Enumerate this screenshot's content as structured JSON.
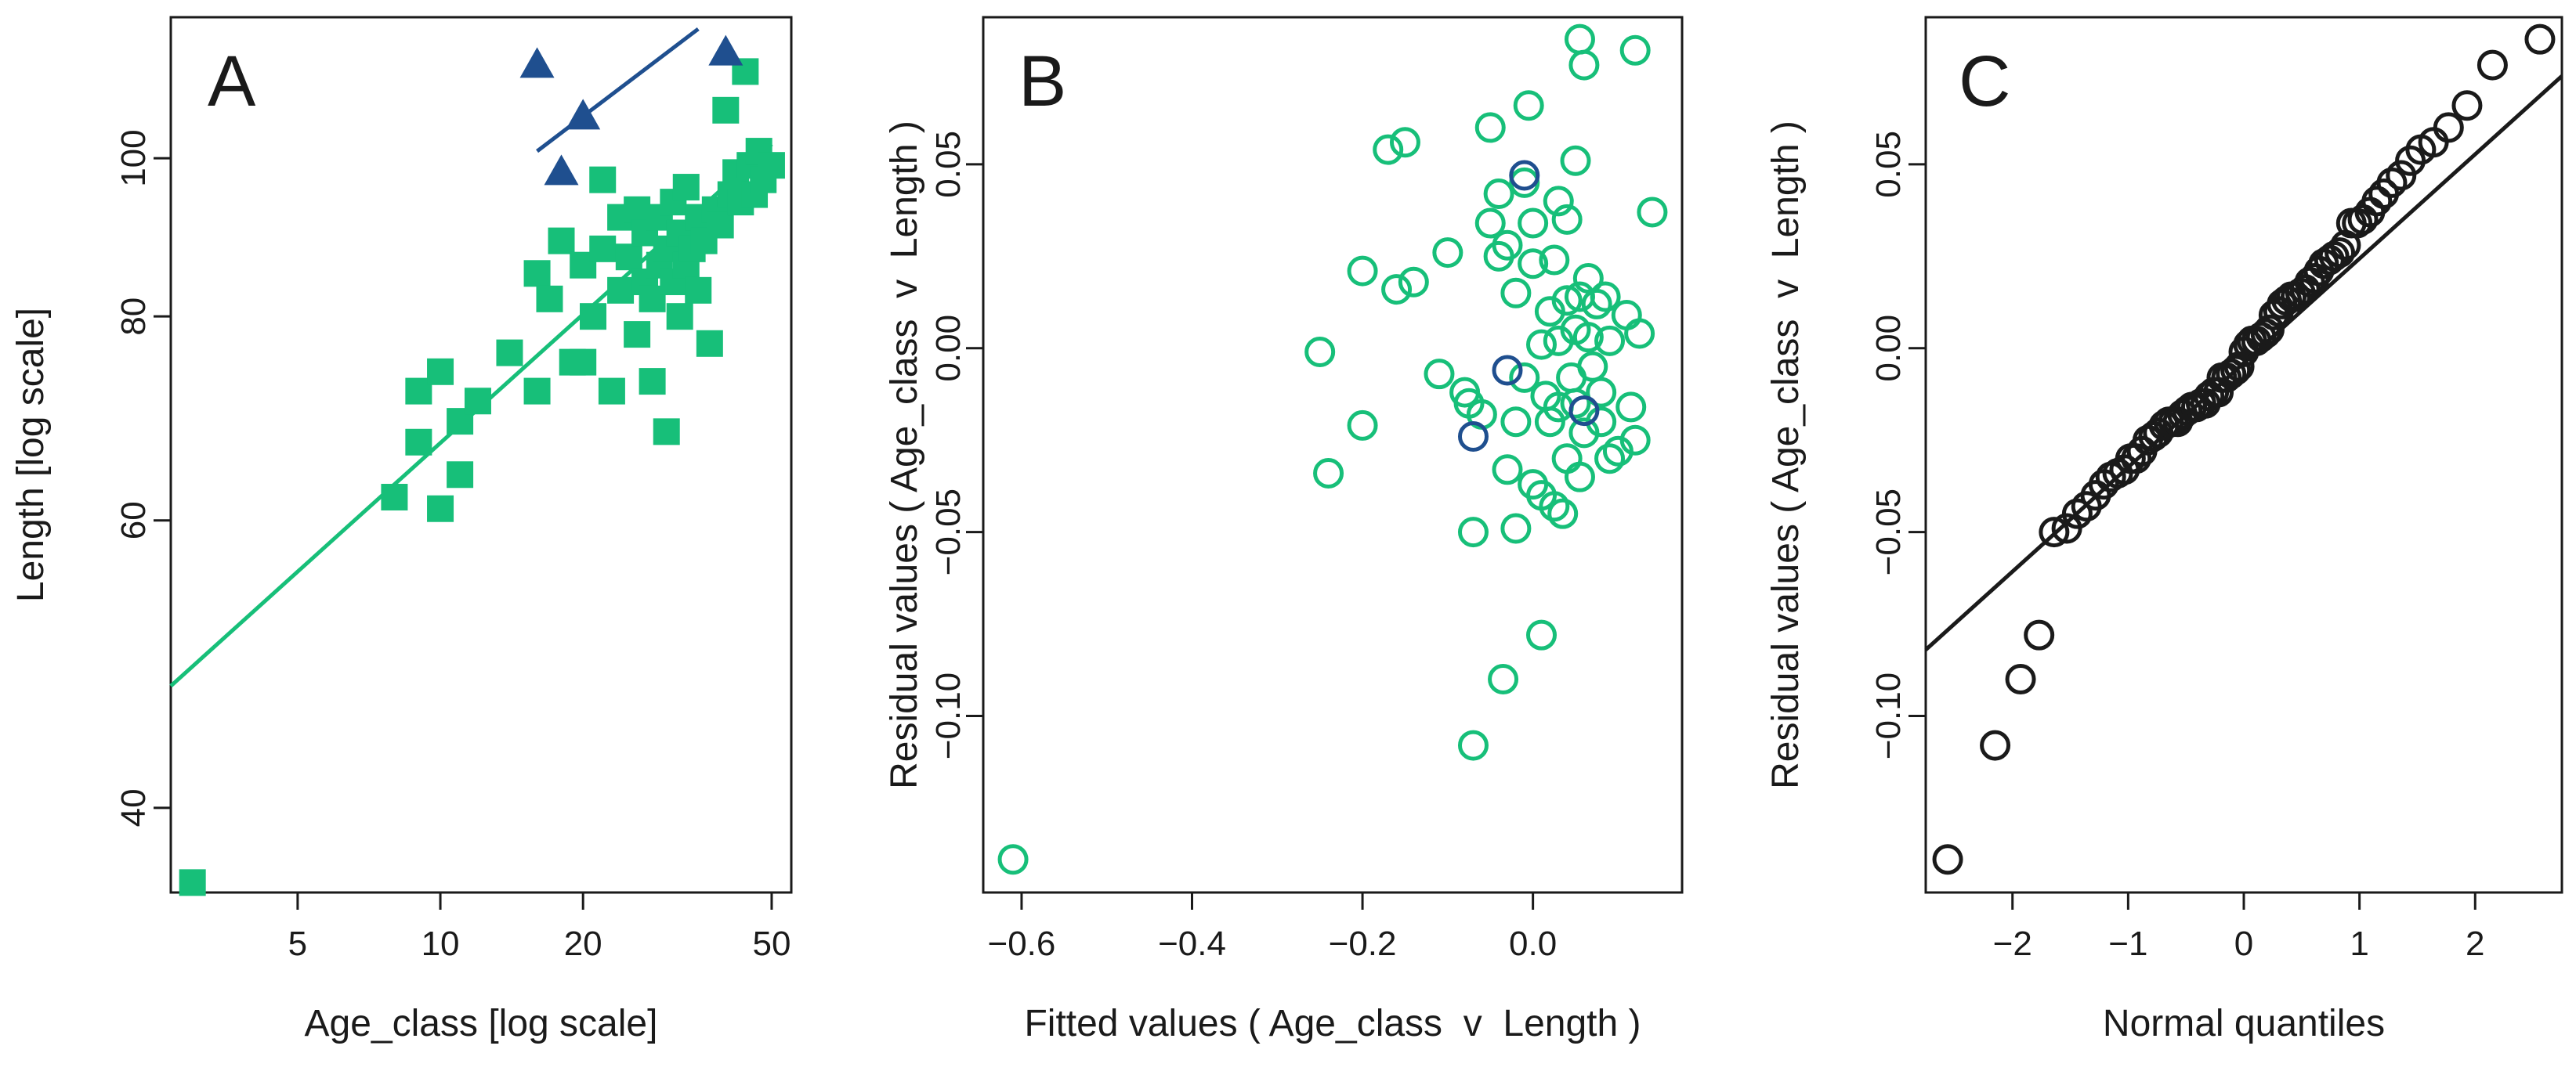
{
  "colors": {
    "green": "#17bf79",
    "blue": "#1f4f8f",
    "black": "#1a1a1a"
  },
  "chart_data": [
    {
      "type": "scatter",
      "panel_label": "A",
      "xlabel": "Age_class [log scale]",
      "ylabel": "Length [log scale]",
      "xscale": "log",
      "yscale": "log",
      "xlim": [
        2.7,
        55
      ],
      "ylim": [
        35.5,
        122
      ],
      "xticks": [
        5,
        10,
        20,
        50
      ],
      "yticks": [
        40,
        60,
        80,
        100
      ],
      "grid": false,
      "series": [
        {
          "marker": "square",
          "color": "#17bf79",
          "points": [
            [
              3,
              36
            ],
            [
              8,
              62
            ],
            [
              9,
              67
            ],
            [
              9,
              72
            ],
            [
              10,
              61
            ],
            [
              10,
              74
            ],
            [
              11,
              69
            ],
            [
              11,
              64
            ],
            [
              12,
              71
            ],
            [
              14,
              76
            ],
            [
              16,
              72
            ],
            [
              16,
              85
            ],
            [
              17,
              82
            ],
            [
              18,
              89
            ],
            [
              19,
              75
            ],
            [
              20,
              75
            ],
            [
              20,
              86
            ],
            [
              21,
              80
            ],
            [
              22,
              97
            ],
            [
              22,
              88
            ],
            [
              23,
              72
            ],
            [
              24,
              83
            ],
            [
              24,
              92
            ],
            [
              25,
              87
            ],
            [
              26,
              78
            ],
            [
              26,
              93
            ],
            [
              27,
              84
            ],
            [
              27,
              90
            ],
            [
              28,
              73
            ],
            [
              28,
              82
            ],
            [
              29,
              86
            ],
            [
              29,
              92
            ],
            [
              30,
              68
            ],
            [
              30,
              88
            ],
            [
              31,
              84
            ],
            [
              31,
              94
            ],
            [
              32,
              80
            ],
            [
              32,
              90
            ],
            [
              33,
              86
            ],
            [
              33,
              96
            ],
            [
              34,
              88
            ],
            [
              35,
              92
            ],
            [
              35,
              83
            ],
            [
              36,
              89
            ],
            [
              37,
              77
            ],
            [
              38,
              93
            ],
            [
              39,
              91
            ],
            [
              40,
              107
            ],
            [
              41,
              95
            ],
            [
              42,
              98
            ],
            [
              43,
              94
            ],
            [
              44,
              113
            ],
            [
              45,
              99
            ],
            [
              46,
              95
            ],
            [
              47,
              101
            ],
            [
              48,
              97
            ],
            [
              50,
              99
            ]
          ],
          "fit_line": [
            [
              2.7,
              47.5
            ],
            [
              50,
              102
            ]
          ]
        },
        {
          "marker": "triangle",
          "color": "#1f4f8f",
          "points": [
            [
              16,
              114
            ],
            [
              18,
              98
            ],
            [
              20,
              106
            ],
            [
              40,
              116
            ]
          ],
          "fit_line": [
            [
              16,
              101
            ],
            [
              35,
              120
            ]
          ]
        }
      ]
    },
    {
      "type": "scatter",
      "panel_label": "B",
      "xlabel": "Fitted values ( Age_class  v  Length )",
      "ylabel": "Residual values ( Age_class  v  Length )",
      "xlim": [
        -0.645,
        0.175
      ],
      "ylim": [
        -0.148,
        0.09
      ],
      "xticks": [
        -0.6,
        -0.4,
        -0.2,
        0.0
      ],
      "xtick_labels": [
        "−0.6",
        "−0.4",
        "−0.2",
        "0.0"
      ],
      "yticks": [
        -0.1,
        -0.05,
        0.0,
        0.05
      ],
      "ytick_labels": [
        "−0.10",
        "−0.05",
        "0.00",
        "0.05"
      ],
      "grid": false,
      "series": [
        {
          "marker": "circle-open",
          "color": "#17bf79",
          "points": [
            [
              -0.61,
              -0.139
            ],
            [
              -0.25,
              -0.001
            ],
            [
              -0.24,
              -0.034
            ],
            [
              -0.2,
              0.021
            ],
            [
              -0.2,
              -0.021
            ],
            [
              -0.17,
              0.054
            ],
            [
              -0.16,
              0.016
            ],
            [
              -0.15,
              0.056
            ],
            [
              -0.14,
              0.018
            ],
            [
              -0.11,
              -0.007
            ],
            [
              -0.1,
              0.026
            ],
            [
              -0.08,
              -0.012
            ],
            [
              -0.075,
              -0.015
            ],
            [
              -0.07,
              -0.05
            ],
            [
              -0.07,
              -0.108
            ],
            [
              -0.06,
              -0.018
            ],
            [
              -0.05,
              0.06
            ],
            [
              -0.05,
              0.034
            ],
            [
              -0.04,
              0.042
            ],
            [
              -0.04,
              0.025
            ],
            [
              -0.035,
              -0.09
            ],
            [
              -0.03,
              0.028
            ],
            [
              -0.03,
              -0.033
            ],
            [
              -0.02,
              0.015
            ],
            [
              -0.02,
              -0.02
            ],
            [
              -0.02,
              -0.049
            ],
            [
              -0.01,
              0.045
            ],
            [
              -0.01,
              -0.008
            ],
            [
              -0.005,
              0.066
            ],
            [
              0.0,
              0.034
            ],
            [
              0.0,
              0.023
            ],
            [
              0.0,
              -0.037
            ],
            [
              0.01,
              0.001
            ],
            [
              0.01,
              -0.04
            ],
            [
              0.01,
              -0.078
            ],
            [
              0.015,
              -0.013
            ],
            [
              0.02,
              0.01
            ],
            [
              0.02,
              -0.02
            ],
            [
              0.025,
              0.024
            ],
            [
              0.025,
              -0.043
            ],
            [
              0.03,
              0.04
            ],
            [
              0.03,
              0.002
            ],
            [
              0.03,
              -0.016
            ],
            [
              0.035,
              -0.045
            ],
            [
              0.04,
              0.013
            ],
            [
              0.04,
              0.035
            ],
            [
              0.04,
              -0.03
            ],
            [
              0.045,
              -0.008
            ],
            [
              0.05,
              0.005
            ],
            [
              0.05,
              0.051
            ],
            [
              0.05,
              -0.015
            ],
            [
              0.055,
              0.084
            ],
            [
              0.055,
              0.014
            ],
            [
              0.055,
              -0.035
            ],
            [
              0.06,
              0.077
            ],
            [
              0.06,
              -0.023
            ],
            [
              0.065,
              0.003
            ],
            [
              0.065,
              0.019
            ],
            [
              0.07,
              -0.005
            ],
            [
              0.075,
              0.012
            ],
            [
              0.08,
              -0.012
            ],
            [
              0.08,
              -0.02
            ],
            [
              0.085,
              0.014
            ],
            [
              0.09,
              -0.03
            ],
            [
              0.09,
              0.002
            ],
            [
              0.1,
              -0.028
            ],
            [
              0.11,
              0.009
            ],
            [
              0.115,
              -0.016
            ],
            [
              0.12,
              -0.025
            ],
            [
              0.12,
              0.081
            ],
            [
              0.125,
              0.004
            ],
            [
              0.14,
              0.037
            ]
          ]
        },
        {
          "marker": "circle-open",
          "color": "#1f4f8f",
          "points": [
            [
              -0.07,
              -0.024
            ],
            [
              -0.03,
              -0.006
            ],
            [
              -0.01,
              0.047
            ],
            [
              0.06,
              -0.017
            ]
          ]
        }
      ]
    },
    {
      "type": "scatter",
      "panel_label": "C",
      "xlabel": "Normal quantiles",
      "ylabel": "Residual values ( Age_class  v  Length )",
      "xlim": [
        -2.75,
        2.75
      ],
      "ylim": [
        -0.148,
        0.09
      ],
      "xticks": [
        -2,
        -1,
        0,
        1,
        2
      ],
      "xtick_labels": [
        "−2",
        "−1",
        "0",
        "1",
        "2"
      ],
      "yticks": [
        -0.1,
        -0.05,
        0.0,
        0.05
      ],
      "ytick_labels": [
        "−0.10",
        "−0.05",
        "0.00",
        "0.05"
      ],
      "grid": false,
      "series": [
        {
          "marker": "circle-open",
          "color": "#1a1a1a",
          "points": [
            [
              -2.56,
              -0.139
            ],
            [
              -2.15,
              -0.108
            ],
            [
              -1.93,
              -0.09
            ],
            [
              -1.77,
              -0.078
            ],
            [
              -1.64,
              -0.05
            ],
            [
              -1.53,
              -0.049
            ],
            [
              -1.44,
              -0.045
            ],
            [
              -1.36,
              -0.043
            ],
            [
              -1.28,
              -0.04
            ],
            [
              -1.21,
              -0.037
            ],
            [
              -1.15,
              -0.035
            ],
            [
              -1.09,
              -0.034
            ],
            [
              -1.03,
              -0.033
            ],
            [
              -0.98,
              -0.03
            ],
            [
              -0.93,
              -0.03
            ],
            [
              -0.88,
              -0.028
            ],
            [
              -0.83,
              -0.025
            ],
            [
              -0.78,
              -0.024
            ],
            [
              -0.74,
              -0.023
            ],
            [
              -0.69,
              -0.021
            ],
            [
              -0.65,
              -0.02
            ],
            [
              -0.61,
              -0.02
            ],
            [
              -0.57,
              -0.02
            ],
            [
              -0.53,
              -0.018
            ],
            [
              -0.49,
              -0.017
            ],
            [
              -0.45,
              -0.016
            ],
            [
              -0.41,
              -0.016
            ],
            [
              -0.37,
              -0.015
            ],
            [
              -0.33,
              -0.015
            ],
            [
              -0.3,
              -0.013
            ],
            [
              -0.26,
              -0.012
            ],
            [
              -0.22,
              -0.012
            ],
            [
              -0.19,
              -0.008
            ],
            [
              -0.15,
              -0.008
            ],
            [
              -0.11,
              -0.007
            ],
            [
              -0.07,
              -0.006
            ],
            [
              -0.04,
              -0.005
            ],
            [
              0.0,
              -0.001
            ],
            [
              0.04,
              0.001
            ],
            [
              0.07,
              0.002
            ],
            [
              0.11,
              0.002
            ],
            [
              0.15,
              0.003
            ],
            [
              0.19,
              0.004
            ],
            [
              0.22,
              0.005
            ],
            [
              0.26,
              0.009
            ],
            [
              0.3,
              0.01
            ],
            [
              0.33,
              0.012
            ],
            [
              0.37,
              0.013
            ],
            [
              0.41,
              0.014
            ],
            [
              0.45,
              0.014
            ],
            [
              0.49,
              0.015
            ],
            [
              0.53,
              0.016
            ],
            [
              0.57,
              0.018
            ],
            [
              0.61,
              0.019
            ],
            [
              0.65,
              0.021
            ],
            [
              0.69,
              0.023
            ],
            [
              0.74,
              0.024
            ],
            [
              0.78,
              0.025
            ],
            [
              0.83,
              0.026
            ],
            [
              0.88,
              0.028
            ],
            [
              0.93,
              0.034
            ],
            [
              0.98,
              0.034
            ],
            [
              1.03,
              0.035
            ],
            [
              1.09,
              0.037
            ],
            [
              1.15,
              0.04
            ],
            [
              1.21,
              0.042
            ],
            [
              1.28,
              0.045
            ],
            [
              1.36,
              0.047
            ],
            [
              1.44,
              0.051
            ],
            [
              1.53,
              0.054
            ],
            [
              1.64,
              0.056
            ],
            [
              1.77,
              0.06
            ],
            [
              1.93,
              0.066
            ],
            [
              2.15,
              0.077
            ],
            [
              2.56,
              0.084
            ]
          ],
          "reference_line": [
            [
              -2.75,
              -0.082
            ],
            [
              2.75,
              0.074
            ]
          ]
        }
      ]
    }
  ]
}
